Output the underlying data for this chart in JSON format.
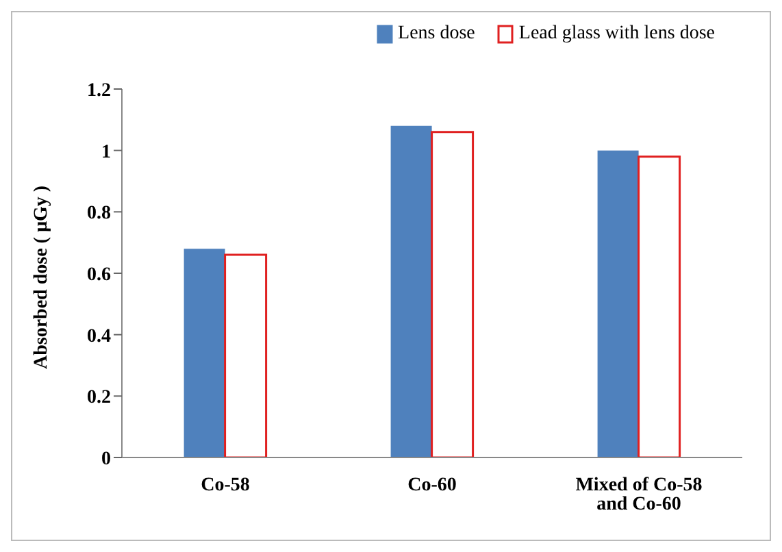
{
  "chart_data": {
    "type": "bar",
    "ylabel": "Absorbed dose ( µGy )",
    "categories": [
      "Co-58",
      "Co-60",
      "Mixed of Co-58 and Co-60"
    ],
    "series": [
      {
        "name": "Lens dose",
        "color": "#4f81bd",
        "values": [
          0.68,
          1.08,
          1.0
        ]
      },
      {
        "name": "Lead glass with lens dose",
        "color": "#e02020",
        "values": [
          0.66,
          1.06,
          0.98
        ]
      }
    ],
    "ylim": [
      0,
      1.2
    ],
    "yticks": [
      0,
      0.2,
      0.4,
      0.6,
      0.8,
      1,
      1.2
    ],
    "legend": "top right"
  }
}
